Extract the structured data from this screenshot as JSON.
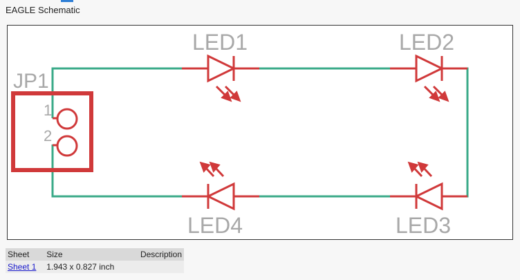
{
  "heading": "EAGLE Schematic",
  "schematic": {
    "connector": {
      "name": "JP1",
      "pin1": "1",
      "pin2": "2"
    },
    "leds": [
      {
        "name": "LED1"
      },
      {
        "name": "LED2"
      },
      {
        "name": "LED3"
      },
      {
        "name": "LED4"
      }
    ],
    "colors": {
      "wire": "#3aaa88",
      "symbol": "#d0393a",
      "label": "#a8a8a8"
    }
  },
  "sheets": {
    "headers": {
      "sheet": "Sheet",
      "size": "Size",
      "description": "Description"
    },
    "rows": [
      {
        "sheet": "Sheet 1",
        "size": "1.943 x 0.827 inch",
        "description": ""
      }
    ]
  }
}
